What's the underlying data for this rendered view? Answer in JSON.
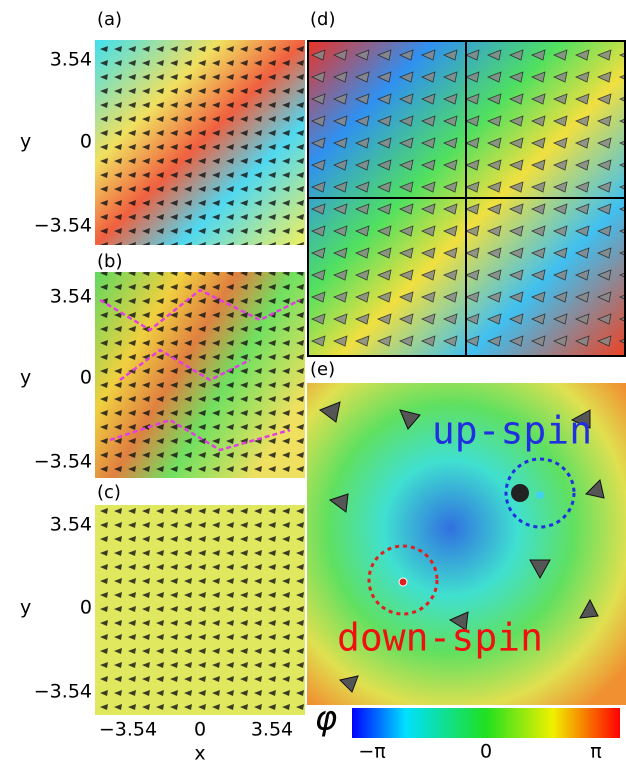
{
  "panels": [
    {
      "label": "(a)",
      "y_label": "y",
      "y_ticks": [
        "3.54",
        "0",
        "−3.54"
      ]
    },
    {
      "label": "(b)",
      "y_label": "y",
      "y_ticks": [
        "3.54",
        "0",
        "−3.54"
      ]
    },
    {
      "label": "(c)",
      "y_label": "y",
      "y_ticks": [
        "3.54",
        "0",
        "−3.54"
      ]
    }
  ],
  "x_axis": {
    "label": "x",
    "ticks": [
      "−3.54",
      "0",
      "3.54"
    ]
  },
  "panel_d": {
    "label": "(d)"
  },
  "panel_e": {
    "label": "(e)",
    "annotations": [
      "up-spin",
      "down-spin"
    ]
  },
  "colorbar": {
    "symbol": "φ",
    "ticks": [
      "−π",
      "0",
      "π"
    ]
  }
}
